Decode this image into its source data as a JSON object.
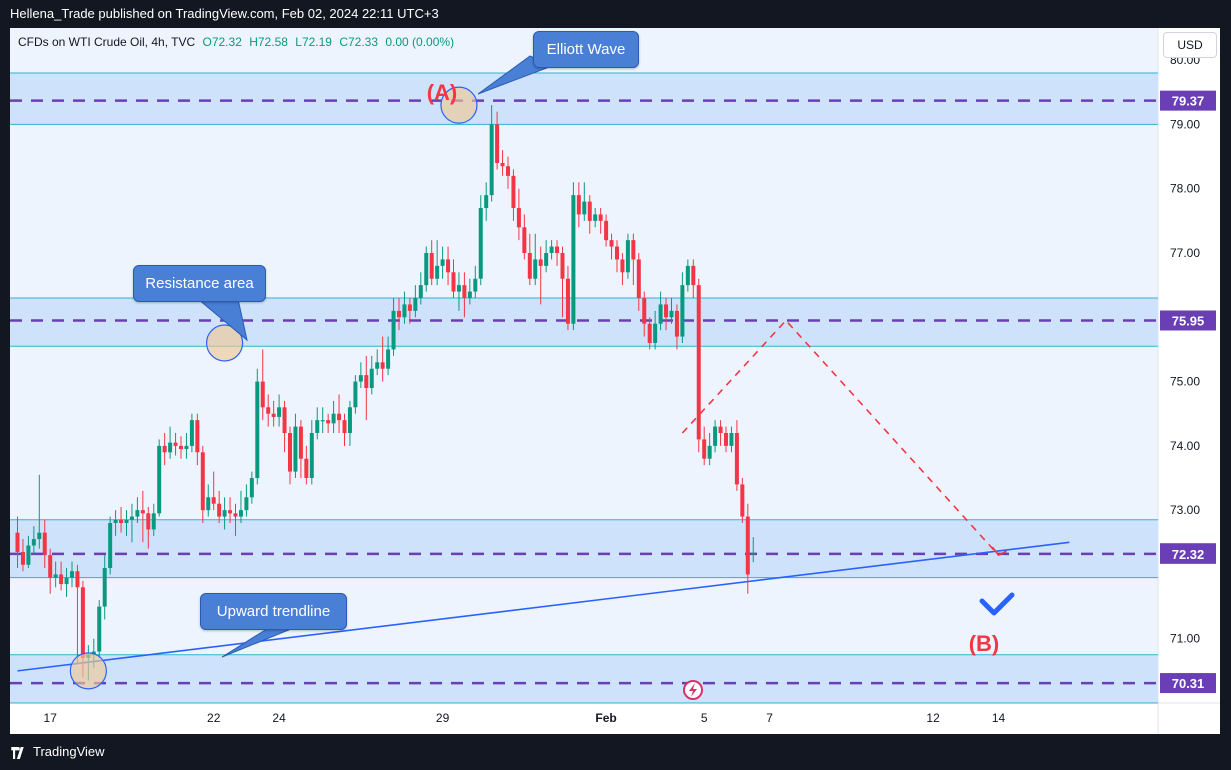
{
  "header": {
    "publisher": "Hellena_Trade published on TradingView.com, Feb 02, 2024 22:11 UTC+3"
  },
  "legend": {
    "symbol": "CFDs on WTI Crude Oil, 4h, TVC",
    "open": "O72.32",
    "high": "H72.58",
    "low": "L72.19",
    "close": "C72.33",
    "change": "0.00 (0.00%)"
  },
  "currency": "USD",
  "footer": {
    "brand": "TradingView"
  },
  "annotations": {
    "elliott_wave": "Elliott Wave",
    "resistance_area": "Resistance area",
    "upward_trendline": "Upward trendline",
    "wave_a": "(A)",
    "wave_b": "(B)"
  },
  "colors": {
    "up": "#089981",
    "down": "#f23645",
    "zone_fill": "#cfe2fb",
    "zone_line": "#2bb5cf",
    "level_line": "#6a3fb5",
    "trendline": "#2962ff",
    "label_bg": "#6a3fb5",
    "callout": "#4a7fd6"
  },
  "chart_data": {
    "type": "candlestick",
    "timeframe": "4h",
    "ylim": [
      70.0,
      80.5
    ],
    "y_ticks": [
      71.0,
      73.0,
      74.0,
      75.0,
      76.0,
      77.0,
      78.0,
      79.0,
      80.0
    ],
    "x_ticks": [
      {
        "label": "17",
        "slot": 6
      },
      {
        "label": "22",
        "slot": 36
      },
      {
        "label": "24",
        "slot": 48
      },
      {
        "label": "29",
        "slot": 78
      },
      {
        "label": "Feb",
        "slot": 108
      },
      {
        "label": "5",
        "slot": 126
      },
      {
        "label": "7",
        "slot": 138
      },
      {
        "label": "12",
        "slot": 168
      },
      {
        "label": "14",
        "slot": 180
      }
    ],
    "price_labels": [
      {
        "value": 79.37,
        "label": "79.37",
        "style": "level"
      },
      {
        "value": 75.95,
        "label": "75.95",
        "style": "level"
      },
      {
        "value": 72.33,
        "label": "72.33",
        "style": "last"
      },
      {
        "value": 72.32,
        "label": "72.32",
        "style": "level"
      },
      {
        "value": 70.31,
        "label": "70.31",
        "style": "level"
      }
    ],
    "zones": [
      {
        "from": 79.0,
        "to": 79.8,
        "level": 79.37
      },
      {
        "from": 75.55,
        "to": 76.3,
        "level": 75.95
      },
      {
        "from": 71.95,
        "to": 72.85,
        "level": 72.32
      },
      {
        "from": 70.0,
        "to": 70.75,
        "level": 70.31
      }
    ],
    "trendline": {
      "from": {
        "slot": 0,
        "price": 70.5
      },
      "to": {
        "slot": 193,
        "price": 72.5
      }
    },
    "projection": [
      {
        "slot": 122,
        "price": 74.2
      },
      {
        "slot": 141,
        "price": 75.95
      },
      {
        "slot": 180,
        "price": 72.3
      }
    ],
    "highlights": [
      {
        "slot": 13,
        "price": 70.5
      },
      {
        "slot": 38,
        "price": 75.6
      },
      {
        "slot": 81,
        "price": 79.3
      }
    ],
    "candles": [
      [
        72.65,
        72.35,
        72.9,
        72.1
      ],
      [
        72.35,
        72.15,
        72.55,
        72.05
      ],
      [
        72.15,
        72.45,
        72.6,
        72.1
      ],
      [
        72.45,
        72.55,
        72.75,
        72.3
      ],
      [
        72.55,
        72.65,
        73.55,
        72.4
      ],
      [
        72.65,
        72.3,
        72.85,
        72.1
      ],
      [
        72.3,
        71.95,
        72.4,
        71.7
      ],
      [
        71.95,
        72.0,
        72.2,
        71.8
      ],
      [
        72.0,
        71.85,
        72.2,
        71.75
      ],
      [
        71.85,
        71.95,
        72.1,
        71.65
      ],
      [
        71.95,
        72.05,
        72.2,
        71.8
      ],
      [
        72.05,
        71.8,
        72.15,
        70.6
      ],
      [
        71.8,
        70.7,
        71.9,
        70.4
      ],
      [
        70.7,
        70.75,
        70.9,
        70.35
      ],
      [
        70.75,
        70.8,
        71.0,
        70.55
      ],
      [
        70.8,
        71.5,
        71.6,
        70.7
      ],
      [
        71.5,
        72.1,
        72.3,
        71.3
      ],
      [
        72.1,
        72.8,
        72.9,
        72.0
      ],
      [
        72.8,
        72.85,
        73.0,
        72.6
      ],
      [
        72.85,
        72.8,
        73.05,
        72.65
      ],
      [
        72.8,
        72.85,
        73.0,
        72.6
      ],
      [
        72.85,
        72.9,
        73.1,
        72.5
      ],
      [
        72.9,
        73.0,
        73.2,
        72.8
      ],
      [
        73.0,
        72.95,
        73.3,
        72.5
      ],
      [
        72.95,
        72.7,
        73.05,
        72.4
      ],
      [
        72.7,
        72.95,
        73.1,
        72.6
      ],
      [
        72.95,
        74.0,
        74.1,
        72.9
      ],
      [
        74.0,
        73.9,
        74.2,
        73.7
      ],
      [
        73.9,
        74.05,
        74.3,
        73.8
      ],
      [
        74.05,
        74.0,
        74.2,
        73.85
      ],
      [
        74.0,
        73.95,
        74.15,
        73.8
      ],
      [
        73.95,
        74.0,
        74.2,
        73.8
      ],
      [
        74.0,
        74.4,
        74.5,
        73.9
      ],
      [
        74.4,
        73.9,
        74.5,
        73.7
      ],
      [
        73.9,
        73.0,
        74.0,
        72.8
      ],
      [
        73.0,
        73.2,
        73.4,
        72.9
      ],
      [
        73.2,
        73.1,
        73.6,
        73.0
      ],
      [
        73.1,
        72.9,
        73.3,
        72.8
      ],
      [
        72.9,
        73.0,
        73.2,
        72.7
      ],
      [
        73.0,
        72.95,
        73.2,
        72.8
      ],
      [
        72.95,
        72.9,
        73.1,
        72.6
      ],
      [
        72.9,
        73.0,
        73.3,
        72.8
      ],
      [
        73.0,
        73.2,
        73.4,
        72.9
      ],
      [
        73.2,
        73.5,
        73.6,
        73.1
      ],
      [
        73.5,
        75.0,
        75.2,
        73.4
      ],
      [
        75.0,
        74.6,
        75.5,
        74.4
      ],
      [
        74.6,
        74.5,
        74.8,
        74.3
      ],
      [
        74.5,
        74.45,
        74.7,
        74.3
      ],
      [
        74.45,
        74.6,
        74.8,
        74.3
      ],
      [
        74.6,
        74.2,
        74.7,
        73.9
      ],
      [
        74.2,
        73.6,
        74.3,
        73.4
      ],
      [
        73.6,
        74.3,
        74.5,
        73.5
      ],
      [
        74.3,
        73.8,
        74.4,
        73.5
      ],
      [
        73.8,
        73.5,
        74.0,
        73.4
      ],
      [
        73.5,
        74.2,
        74.4,
        73.4
      ],
      [
        74.2,
        74.4,
        74.6,
        74.1
      ],
      [
        74.4,
        74.4,
        74.6,
        74.2
      ],
      [
        74.4,
        74.35,
        74.5,
        74.2
      ],
      [
        74.35,
        74.5,
        74.7,
        74.2
      ],
      [
        74.5,
        74.4,
        74.8,
        74.2
      ],
      [
        74.4,
        74.2,
        74.5,
        74.0
      ],
      [
        74.2,
        74.6,
        74.7,
        74.0
      ],
      [
        74.6,
        75.0,
        75.1,
        74.5
      ],
      [
        75.0,
        75.1,
        75.3,
        74.9
      ],
      [
        75.1,
        74.9,
        75.4,
        74.4
      ],
      [
        74.9,
        75.2,
        75.4,
        74.8
      ],
      [
        75.2,
        75.3,
        75.5,
        75.1
      ],
      [
        75.3,
        75.2,
        75.7,
        75.0
      ],
      [
        75.2,
        75.5,
        75.7,
        75.1
      ],
      [
        75.5,
        76.1,
        76.3,
        75.4
      ],
      [
        76.1,
        76.0,
        76.3,
        75.8
      ],
      [
        76.0,
        76.2,
        76.4,
        75.9
      ],
      [
        76.2,
        76.1,
        76.3,
        75.9
      ],
      [
        76.1,
        76.3,
        76.5,
        76.0
      ],
      [
        76.3,
        76.5,
        76.7,
        76.2
      ],
      [
        76.5,
        77.0,
        77.1,
        76.4
      ],
      [
        77.0,
        76.6,
        77.2,
        76.5
      ],
      [
        76.6,
        76.8,
        77.2,
        76.5
      ],
      [
        76.8,
        76.9,
        77.1,
        76.6
      ],
      [
        76.9,
        76.7,
        77.1,
        76.5
      ],
      [
        76.7,
        76.4,
        76.9,
        76.3
      ],
      [
        76.4,
        76.5,
        76.7,
        76.1
      ],
      [
        76.5,
        76.3,
        76.7,
        76.0
      ],
      [
        76.3,
        76.4,
        76.6,
        76.2
      ],
      [
        76.4,
        76.6,
        76.8,
        76.3
      ],
      [
        76.6,
        77.7,
        77.9,
        76.5
      ],
      [
        77.7,
        77.9,
        78.1,
        77.5
      ],
      [
        77.9,
        79.0,
        79.3,
        77.8
      ],
      [
        79.0,
        78.4,
        79.2,
        78.3
      ],
      [
        78.4,
        78.35,
        78.6,
        78.2
      ],
      [
        78.35,
        78.2,
        78.5,
        78.0
      ],
      [
        78.2,
        77.7,
        78.3,
        77.5
      ],
      [
        77.7,
        77.4,
        78.0,
        77.2
      ],
      [
        77.4,
        77.0,
        77.6,
        76.9
      ],
      [
        77.0,
        76.6,
        77.3,
        76.5
      ],
      [
        76.6,
        76.9,
        77.3,
        76.5
      ],
      [
        76.9,
        76.8,
        77.1,
        76.2
      ],
      [
        76.8,
        77.0,
        77.2,
        76.7
      ],
      [
        77.0,
        77.1,
        77.2,
        76.9
      ],
      [
        77.1,
        77.0,
        77.2,
        76.8
      ],
      [
        77.0,
        76.6,
        77.1,
        76.0
      ],
      [
        76.6,
        75.9,
        76.8,
        75.8
      ],
      [
        75.9,
        77.9,
        78.1,
        75.8
      ],
      [
        77.9,
        77.6,
        78.1,
        77.4
      ],
      [
        77.6,
        77.8,
        78.1,
        77.5
      ],
      [
        77.8,
        77.5,
        77.9,
        77.3
      ],
      [
        77.5,
        77.6,
        77.7,
        77.4
      ],
      [
        77.6,
        77.5,
        77.7,
        77.3
      ],
      [
        77.5,
        77.2,
        77.6,
        77.1
      ],
      [
        77.2,
        77.1,
        77.3,
        76.9
      ],
      [
        77.1,
        76.9,
        77.2,
        76.7
      ],
      [
        76.9,
        76.7,
        77.0,
        76.5
      ],
      [
        76.7,
        77.2,
        77.3,
        76.6
      ],
      [
        77.2,
        76.9,
        77.3,
        76.5
      ],
      [
        76.9,
        76.3,
        77.0,
        76.1
      ],
      [
        76.3,
        75.9,
        76.4,
        75.7
      ],
      [
        75.9,
        75.6,
        76.0,
        75.5
      ],
      [
        75.6,
        75.9,
        76.1,
        75.5
      ],
      [
        75.9,
        76.2,
        76.4,
        75.8
      ],
      [
        76.2,
        76.0,
        76.3,
        75.8
      ],
      [
        76.0,
        76.1,
        76.3,
        75.9
      ],
      [
        76.1,
        75.7,
        76.2,
        75.5
      ],
      [
        75.7,
        76.5,
        76.7,
        75.6
      ],
      [
        76.5,
        76.8,
        76.9,
        76.4
      ],
      [
        76.8,
        76.5,
        76.9,
        76.3
      ],
      [
        76.5,
        74.1,
        76.6,
        73.9
      ],
      [
        74.1,
        73.8,
        74.3,
        73.7
      ],
      [
        73.8,
        74.0,
        74.2,
        73.7
      ],
      [
        74.0,
        74.3,
        74.4,
        73.9
      ],
      [
        74.3,
        74.2,
        74.4,
        74.0
      ],
      [
        74.2,
        74.0,
        74.3,
        73.9
      ],
      [
        74.0,
        74.2,
        74.3,
        73.9
      ],
      [
        74.2,
        73.4,
        74.4,
        73.3
      ],
      [
        73.4,
        72.9,
        73.5,
        72.8
      ],
      [
        72.9,
        72.0,
        73.1,
        71.7
      ],
      [
        72.32,
        72.33,
        72.58,
        72.19
      ]
    ]
  }
}
